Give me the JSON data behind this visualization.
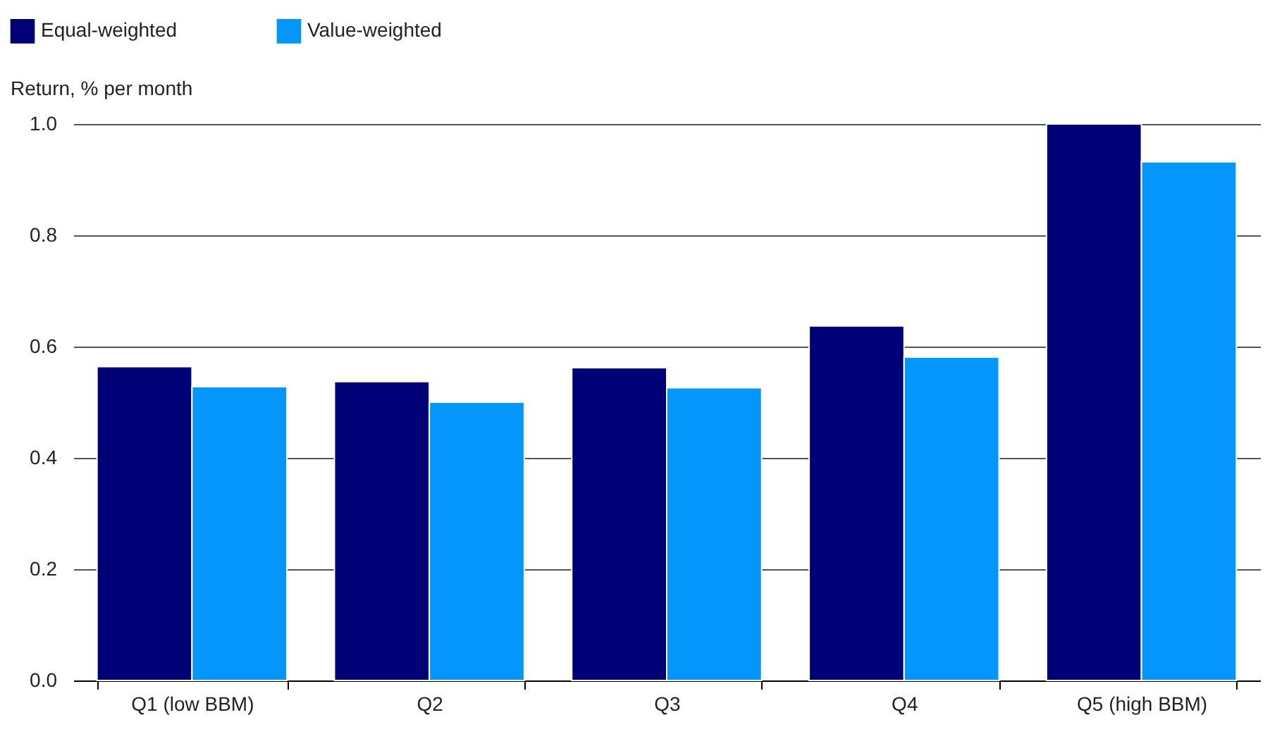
{
  "chart_data": {
    "type": "bar",
    "ylabel": "Return, % per month",
    "categories": [
      "Q1 (low BBM)",
      "Q2",
      "Q3",
      "Q4",
      "Q5 (high BBM)"
    ],
    "series": [
      {
        "name": "Equal-weighted",
        "color": "#000077",
        "values": [
          0.564,
          0.537,
          0.562,
          0.637,
          1.0
        ]
      },
      {
        "name": "Value-weighted",
        "color": "#0496fa",
        "values": [
          0.528,
          0.5,
          0.526,
          0.581,
          0.932
        ]
      }
    ],
    "ylim": [
      0,
      1.0
    ],
    "yticks": [
      {
        "value": 0,
        "label": "0.0"
      },
      0.2,
      0.4,
      0.6,
      0.8,
      {
        "value": 1,
        "label": "1.0"
      }
    ],
    "grid": "y",
    "legend": "top left"
  }
}
